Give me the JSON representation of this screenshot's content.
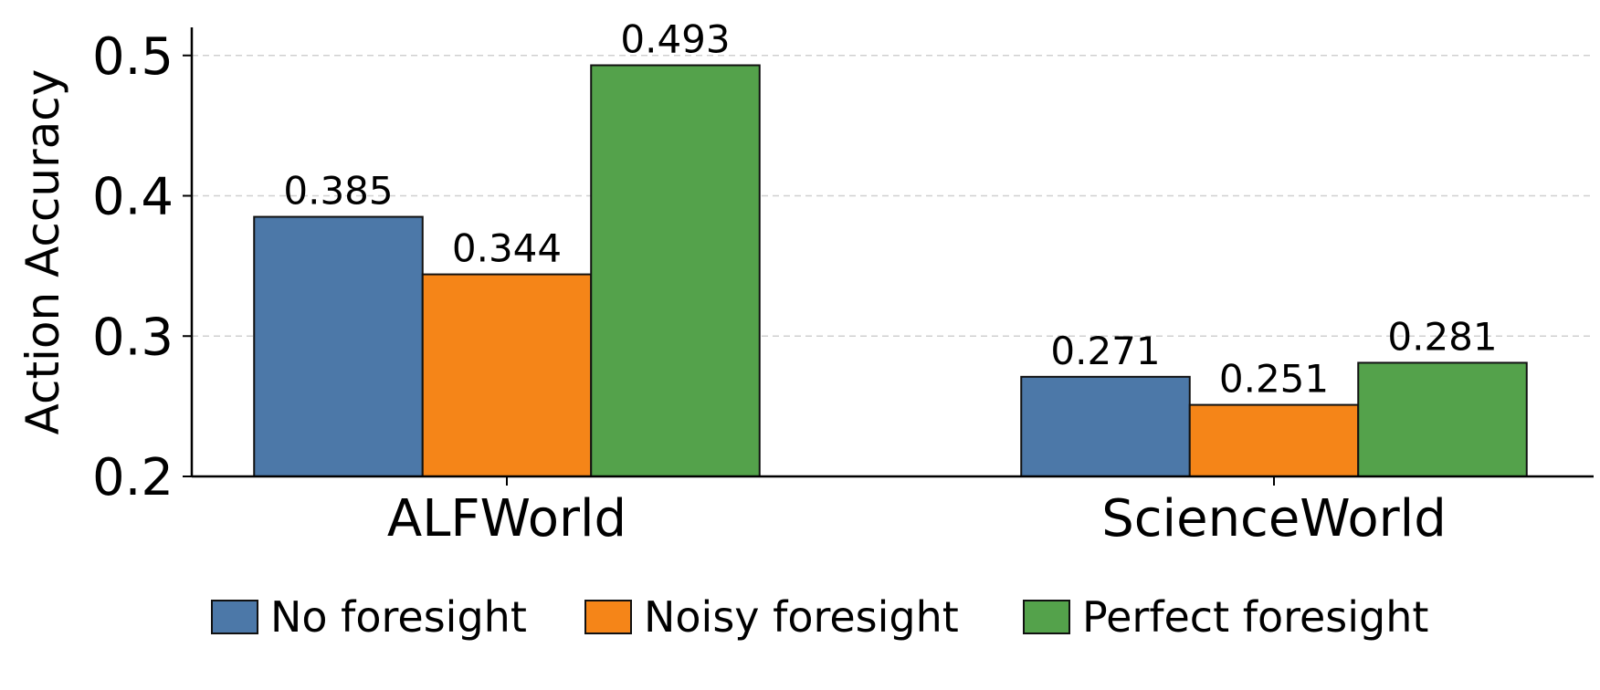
{
  "chart_data": {
    "type": "bar",
    "title": "",
    "xlabel": "",
    "ylabel": "Action Accuracy",
    "ylim": [
      0.2,
      0.52
    ],
    "yticks": [
      {
        "value": 0.2,
        "label": "0.2"
      },
      {
        "value": 0.3,
        "label": "0.3"
      },
      {
        "value": 0.4,
        "label": "0.4"
      },
      {
        "value": 0.5,
        "label": "0.5"
      }
    ],
    "categories": [
      "ALFWorld",
      "ScienceWorld"
    ],
    "series": [
      {
        "name": "No foresight",
        "color": "#4c78a8",
        "values": [
          0.385,
          0.271
        ],
        "labels": [
          "0.385",
          "0.271"
        ]
      },
      {
        "name": "Noisy foresight",
        "color": "#f58518",
        "values": [
          0.344,
          0.251
        ],
        "labels": [
          "0.344",
          "0.251"
        ]
      },
      {
        "name": "Perfect foresight",
        "color": "#54a24b",
        "values": [
          0.493,
          0.281
        ],
        "labels": [
          "0.493",
          "0.281"
        ]
      }
    ],
    "grid": "horizontal dashed",
    "legend_position": "bottom"
  }
}
